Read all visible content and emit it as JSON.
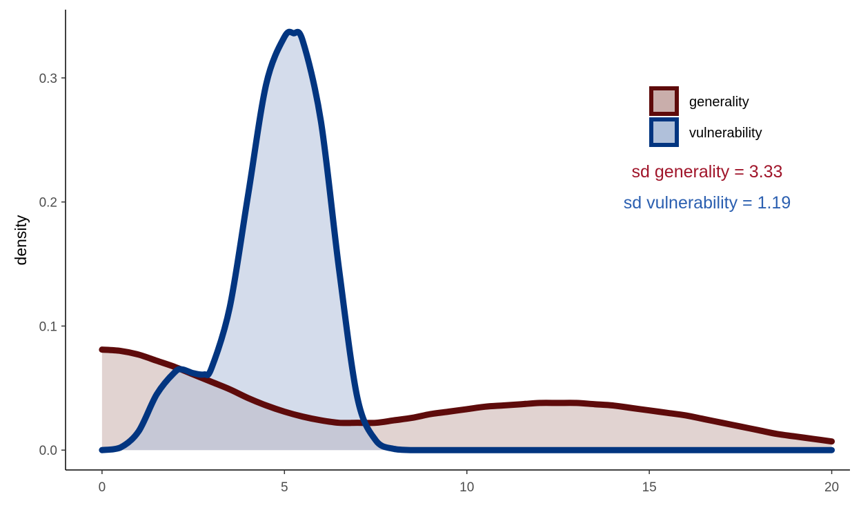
{
  "chart_data": {
    "type": "area",
    "xlabel": "",
    "ylabel": "density",
    "xlim": [
      -1.0,
      20.5
    ],
    "ylim": [
      -0.016,
      0.355
    ],
    "xticks": [
      0,
      5,
      10,
      15,
      20
    ],
    "xtick_labels": [
      "0",
      "5",
      "10",
      "15",
      "20"
    ],
    "yticks": [
      0.0,
      0.1,
      0.2,
      0.3
    ],
    "ytick_labels": [
      "0.0",
      "0.1",
      "0.2",
      "0.3"
    ],
    "grid": false,
    "legend_position": "top-right",
    "series": [
      {
        "name": "generality",
        "line_color": "#5e0b0b",
        "fill_color": "#c9aeab",
        "x": [
          0,
          0.5,
          1,
          1.5,
          2,
          2.5,
          3,
          3.5,
          4,
          4.5,
          5,
          5.5,
          6,
          6.5,
          7,
          7.5,
          8,
          8.5,
          9,
          9.5,
          10,
          10.5,
          11,
          11.5,
          12,
          12.5,
          13,
          13.5,
          14,
          14.5,
          15,
          15.5,
          16,
          16.5,
          17,
          17.5,
          18,
          18.5,
          19,
          19.5,
          20
        ],
        "y": [
          0.081,
          0.08,
          0.077,
          0.072,
          0.067,
          0.061,
          0.055,
          0.049,
          0.042,
          0.036,
          0.031,
          0.027,
          0.024,
          0.022,
          0.022,
          0.022,
          0.024,
          0.026,
          0.029,
          0.031,
          0.033,
          0.035,
          0.036,
          0.037,
          0.038,
          0.038,
          0.038,
          0.037,
          0.036,
          0.034,
          0.032,
          0.03,
          0.028,
          0.025,
          0.022,
          0.019,
          0.016,
          0.013,
          0.011,
          0.009,
          0.007
        ]
      },
      {
        "name": "vulnerability",
        "line_color": "#023580",
        "fill_color": "#b0c0da",
        "x": [
          0,
          0.5,
          1,
          1.5,
          2,
          2.2,
          2.5,
          2.8,
          3,
          3.5,
          4,
          4.5,
          5,
          5.25,
          5.5,
          6,
          6.5,
          7,
          7.5,
          8,
          8.5,
          9,
          10,
          12,
          15,
          20
        ],
        "y": [
          0.0,
          0.002,
          0.015,
          0.045,
          0.063,
          0.065,
          0.062,
          0.061,
          0.066,
          0.115,
          0.205,
          0.295,
          0.333,
          0.336,
          0.33,
          0.265,
          0.145,
          0.042,
          0.008,
          0.001,
          0.0,
          0.0,
          0.0,
          0.0,
          0.0,
          0.0
        ]
      }
    ],
    "annotations": [
      {
        "text": "sd generality = 3.33",
        "color": "#a0152a"
      },
      {
        "text": "sd vulnerability = 1.19",
        "color": "#2b5fb0"
      }
    ]
  }
}
